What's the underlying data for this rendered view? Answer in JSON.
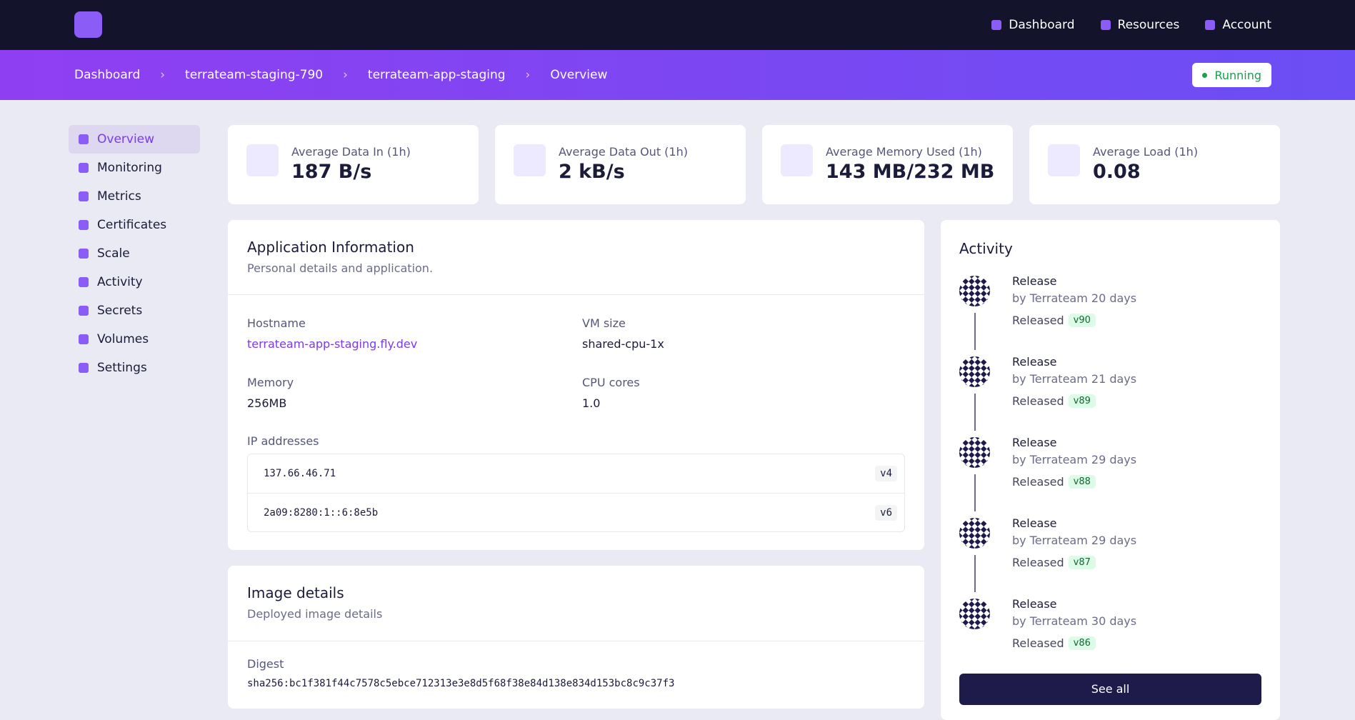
{
  "nav": {
    "links": [
      "Dashboard",
      "Resources",
      "Account"
    ]
  },
  "breadcrumb": {
    "items": [
      "Dashboard",
      "terrateam-staging-790",
      "terrateam-app-staging",
      "Overview"
    ],
    "status": "Running"
  },
  "sidebar": {
    "items": [
      "Overview",
      "Monitoring",
      "Metrics",
      "Certificates",
      "Scale",
      "Activity",
      "Secrets",
      "Volumes",
      "Settings"
    ]
  },
  "stats": [
    {
      "label": "Average Data In (1h)",
      "value": "187 B/s"
    },
    {
      "label": "Average Data Out (1h)",
      "value": "2 kB/s"
    },
    {
      "label": "Average Memory Used (1h)",
      "value": "143 MB/232 MB"
    },
    {
      "label": "Average Load (1h)",
      "value": "0.08"
    }
  ],
  "app_info": {
    "title": "Application Information",
    "subtitle": "Personal details and application.",
    "fields": [
      {
        "label": "Hostname",
        "value": "terrateam-app-staging.fly.dev"
      },
      {
        "label": "VM size",
        "value": "shared-cpu-1x"
      },
      {
        "label": "Memory",
        "value": "256MB"
      },
      {
        "label": "CPU cores",
        "value": "1.0"
      }
    ],
    "ip_label": "IP addresses",
    "ips": [
      {
        "address": "137.66.46.71",
        "version": "v4"
      },
      {
        "address": "2a09:8280:1::6:8e5b",
        "version": "v6"
      }
    ]
  },
  "image_details": {
    "title": "Image details",
    "subtitle": "Deployed image details",
    "digest_label": "Digest",
    "digest": "sha256:bc1f381f44c7578c5ebce712313e3e8d5f68f38e84d138e834d153bc8c9c37f3"
  },
  "activity": {
    "title": "Activity",
    "items": [
      {
        "title": "Release",
        "by": "by Terrateam 20 days",
        "status": "Released",
        "version": "v90"
      },
      {
        "title": "Release",
        "by": "by Terrateam 21 days",
        "status": "Released",
        "version": "v89"
      },
      {
        "title": "Release",
        "by": "by Terrateam 29 days",
        "status": "Released",
        "version": "v88"
      },
      {
        "title": "Release",
        "by": "by Terrateam 29 days",
        "status": "Released",
        "version": "v87"
      },
      {
        "title": "Release",
        "by": "by Terrateam 30 days",
        "status": "Released",
        "version": "v86"
      }
    ],
    "button": "See all"
  }
}
